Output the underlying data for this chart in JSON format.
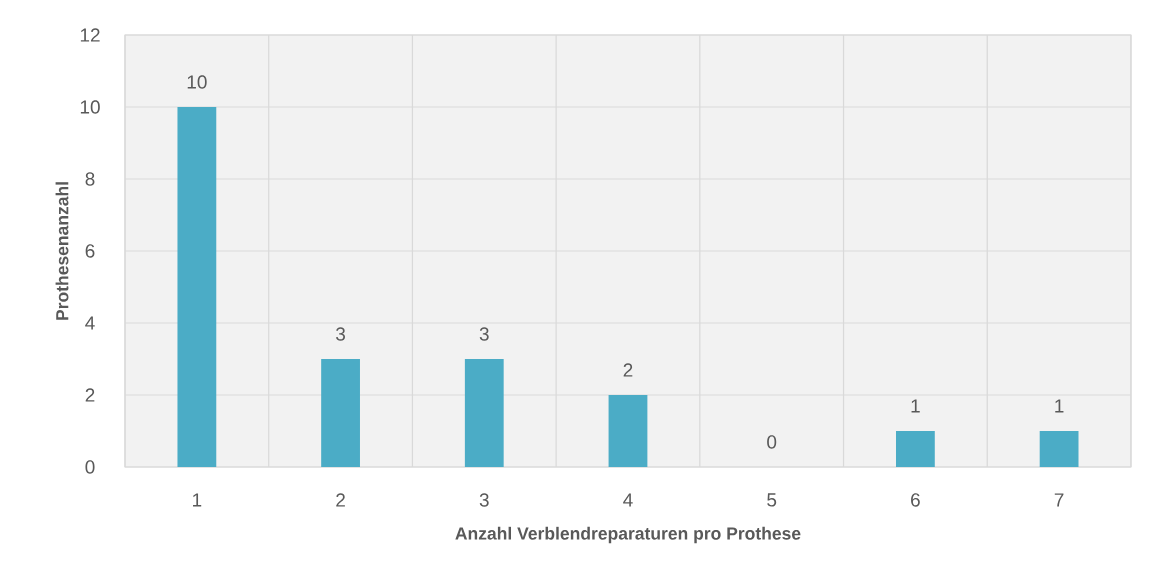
{
  "chart_data": {
    "type": "bar",
    "xlabel": "Anzahl Verblendreparaturen pro Prothese",
    "ylabel": "Prothesenanzahl",
    "categories": [
      "1",
      "2",
      "3",
      "4",
      "5",
      "6",
      "7"
    ],
    "values": [
      10,
      3,
      3,
      2,
      0,
      1,
      1
    ],
    "color": "#4bacc6",
    "ylim": [
      0,
      12
    ],
    "yticks": [
      0,
      2,
      4,
      6,
      8,
      10,
      12
    ],
    "grid": true,
    "data_labels": true
  }
}
